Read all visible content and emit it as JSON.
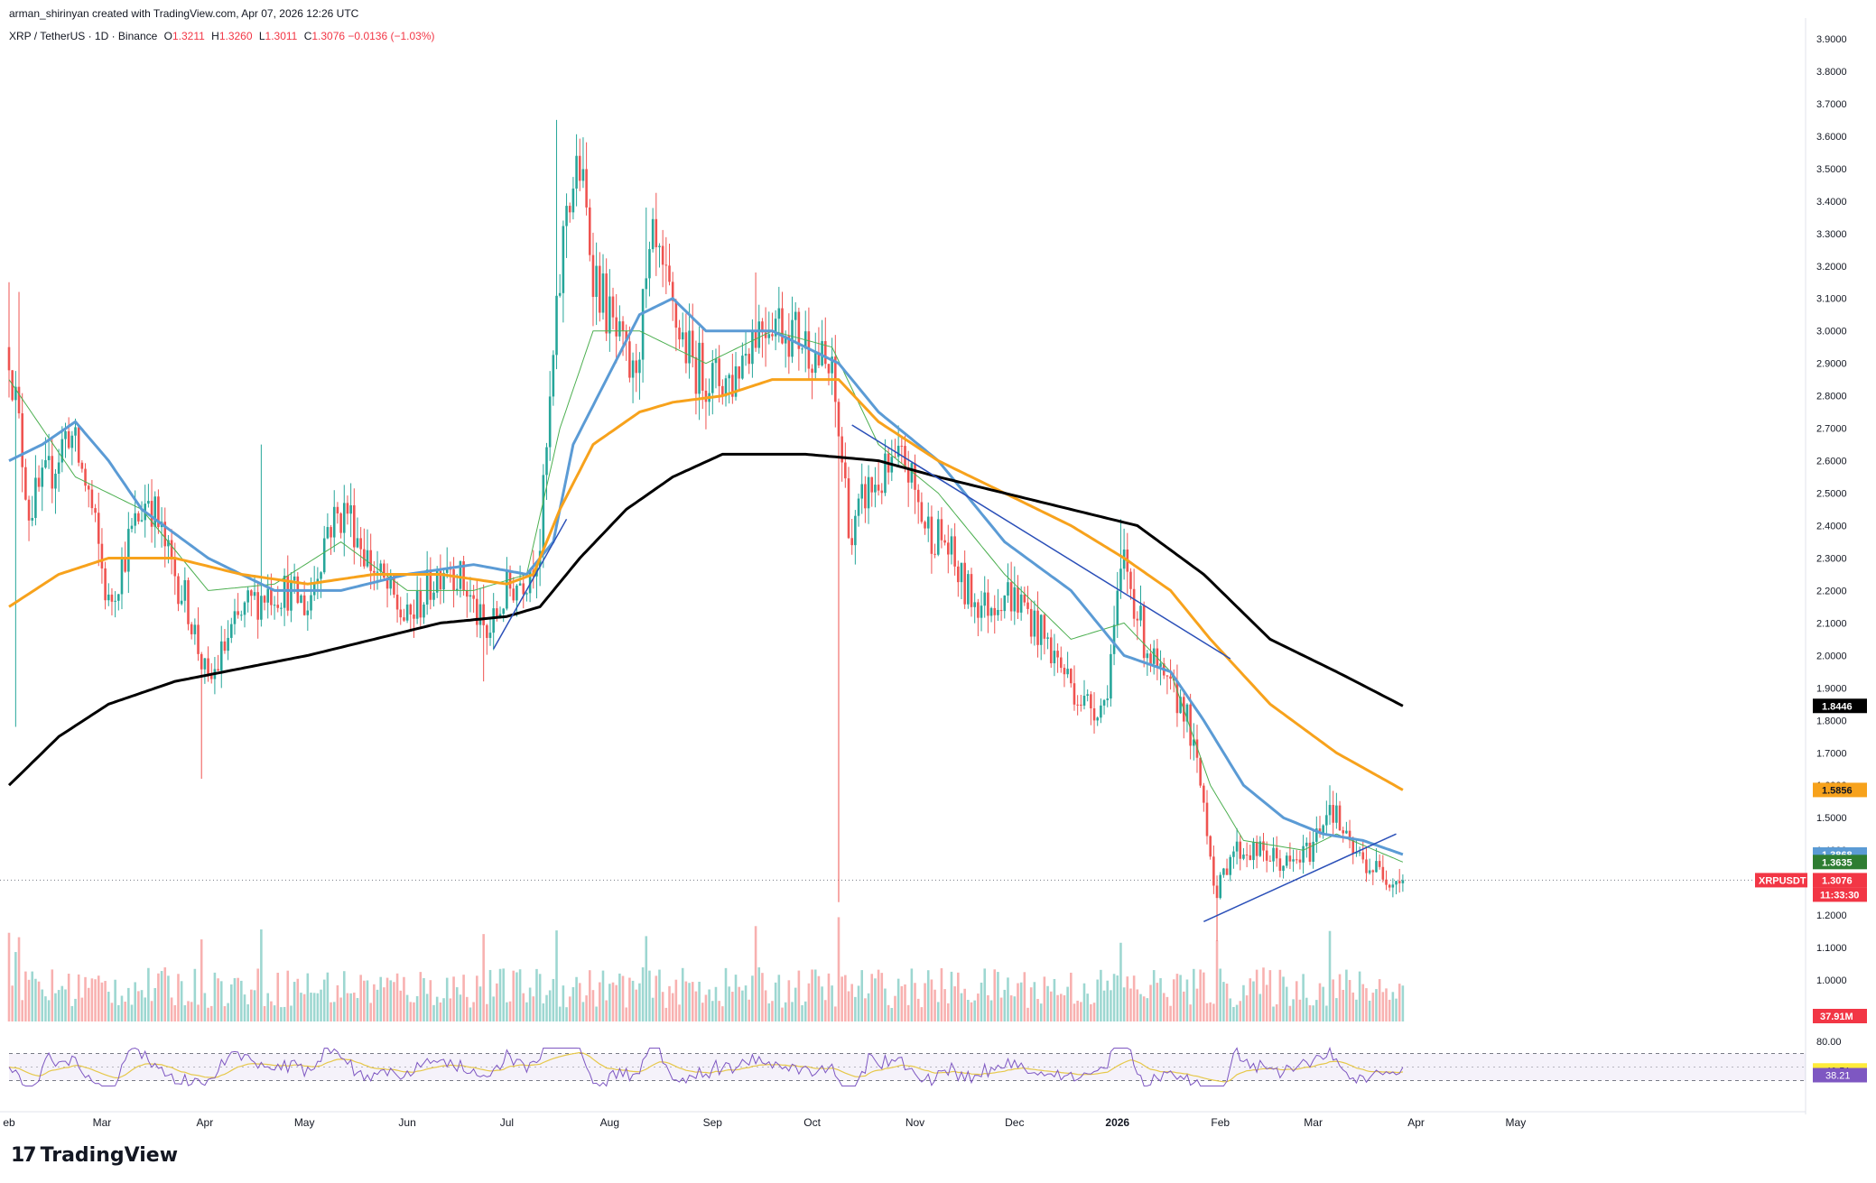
{
  "header": {
    "attribution": "arman_shirinyan created with TradingView.com, Apr 07, 2026 12:26 UTC"
  },
  "legend": {
    "symbol": "XRP / TetherUS · 1D · Binance",
    "o_label": "O",
    "o": "1.3211",
    "h_label": "H",
    "h": "1.3260",
    "l_label": "L",
    "l": "1.3011",
    "c_label": "C",
    "c": "1.3076",
    "change": "−0.0136 (−1.03%)"
  },
  "branding": {
    "logo_text": "TradingView"
  },
  "colors": {
    "up": "#26a69a",
    "down": "#ef5350",
    "ma_fast": "#4caf50",
    "ma_mid": "#5b9bd5",
    "ma_slow": "#f7a21c",
    "ma_long": "#000000",
    "trendline": "#2a4fb8",
    "rsi": "#7e57c2",
    "rsi_ma": "#e6c84a"
  },
  "price_tags": [
    {
      "label": "1.8446",
      "value": 1.8446,
      "bg": "#000000"
    },
    {
      "label": "1.5856",
      "value": 1.5856,
      "bg": "#f7a21c"
    },
    {
      "label": "1.3868",
      "value": 1.3868,
      "bg": "#5b9bd5"
    },
    {
      "label": "1.3635",
      "value": 1.3635,
      "bg": "#2e7d32"
    },
    {
      "label": "1.3076",
      "value": 1.3076,
      "bg": "#f23645"
    }
  ],
  "symbol_tag": {
    "label": "XRPUSDT",
    "countdown": "11:33:30"
  },
  "volume_tag": "37.91M",
  "rsi_tags": {
    "level": "80.00",
    "rsi_ma": "40.51",
    "rsi": "38.21"
  },
  "chart_data": {
    "type": "candlestick",
    "instrument": "XRP / TetherUS",
    "timeframe": "1D",
    "exchange": "Binance",
    "price_axis": {
      "range": [
        1.0,
        3.9
      ],
      "ticks": [
        "3.9000",
        "3.8000",
        "3.7000",
        "3.6000",
        "3.5000",
        "3.4000",
        "3.3000",
        "3.2000",
        "3.1000",
        "3.0000",
        "2.9000",
        "2.8000",
        "2.7000",
        "2.6000",
        "2.5000",
        "2.4000",
        "2.3000",
        "2.2000",
        "2.1000",
        "2.0000",
        "1.9000",
        "1.8000",
        "1.7000",
        "1.6000",
        "1.5000",
        "1.4000",
        "1.3000",
        "1.2000",
        "1.1000",
        "1.0000",
        "0.9000"
      ]
    },
    "time_axis": {
      "ticks": [
        "eb",
        "Mar",
        "Apr",
        "May",
        "Jun",
        "Jul",
        "Aug",
        "Sep",
        "Oct",
        "Nov",
        "Dec",
        "2026",
        "Feb",
        "Mar",
        "Apr",
        "May"
      ]
    },
    "price_path": [
      [
        0,
        2.95
      ],
      [
        6,
        2.45
      ],
      [
        12,
        2.55
      ],
      [
        18,
        2.7
      ],
      [
        24,
        2.5
      ],
      [
        30,
        2.15
      ],
      [
        36,
        2.35
      ],
      [
        42,
        2.5
      ],
      [
        48,
        2.3
      ],
      [
        54,
        2.15
      ],
      [
        60,
        1.9
      ],
      [
        66,
        2.05
      ],
      [
        72,
        2.15
      ],
      [
        78,
        2.2
      ],
      [
        84,
        2.2
      ],
      [
        90,
        2.15
      ],
      [
        96,
        2.4
      ],
      [
        102,
        2.45
      ],
      [
        108,
        2.3
      ],
      [
        114,
        2.2
      ],
      [
        120,
        2.1
      ],
      [
        126,
        2.2
      ],
      [
        132,
        2.3
      ],
      [
        138,
        2.2
      ],
      [
        144,
        2.05
      ],
      [
        150,
        2.2
      ],
      [
        156,
        2.25
      ],
      [
        160,
        2.35
      ],
      [
        164,
        2.9
      ],
      [
        168,
        3.4
      ],
      [
        172,
        3.5
      ],
      [
        176,
        3.2
      ],
      [
        182,
        3.0
      ],
      [
        188,
        2.85
      ],
      [
        194,
        3.25
      ],
      [
        200,
        3.05
      ],
      [
        206,
        2.9
      ],
      [
        212,
        2.85
      ],
      [
        218,
        2.85
      ],
      [
        224,
        3.0
      ],
      [
        230,
        3.05
      ],
      [
        236,
        3.0
      ],
      [
        242,
        2.95
      ],
      [
        248,
        2.85
      ],
      [
        254,
        2.35
      ],
      [
        258,
        2.5
      ],
      [
        264,
        2.55
      ],
      [
        270,
        2.6
      ],
      [
        276,
        2.4
      ],
      [
        282,
        2.35
      ],
      [
        288,
        2.2
      ],
      [
        294,
        2.15
      ],
      [
        300,
        2.2
      ],
      [
        306,
        2.15
      ],
      [
        312,
        2.05
      ],
      [
        318,
        1.95
      ],
      [
        324,
        1.85
      ],
      [
        330,
        1.85
      ],
      [
        336,
        2.3
      ],
      [
        342,
        2.05
      ],
      [
        348,
        1.9
      ],
      [
        354,
        1.85
      ],
      [
        360,
        1.55
      ],
      [
        364,
        1.25
      ],
      [
        368,
        1.4
      ],
      [
        374,
        1.4
      ],
      [
        380,
        1.38
      ],
      [
        386,
        1.35
      ],
      [
        392,
        1.4
      ],
      [
        398,
        1.55
      ],
      [
        404,
        1.4
      ],
      [
        410,
        1.35
      ],
      [
        416,
        1.32
      ],
      [
        420,
        1.3076
      ]
    ],
    "moving_averages": [
      {
        "name": "MA fast",
        "color": "#4caf50",
        "points": [
          [
            0,
            2.85
          ],
          [
            20,
            2.55
          ],
          [
            40,
            2.45
          ],
          [
            60,
            2.2
          ],
          [
            80,
            2.22
          ],
          [
            100,
            2.35
          ],
          [
            120,
            2.2
          ],
          [
            140,
            2.2
          ],
          [
            156,
            2.25
          ],
          [
            166,
            2.7
          ],
          [
            176,
            3.0
          ],
          [
            190,
            3.0
          ],
          [
            210,
            2.9
          ],
          [
            230,
            3.0
          ],
          [
            248,
            2.95
          ],
          [
            262,
            2.65
          ],
          [
            280,
            2.5
          ],
          [
            300,
            2.25
          ],
          [
            320,
            2.05
          ],
          [
            336,
            2.1
          ],
          [
            350,
            1.95
          ],
          [
            362,
            1.6
          ],
          [
            372,
            1.43
          ],
          [
            390,
            1.4
          ],
          [
            400,
            1.45
          ],
          [
            420,
            1.3635
          ]
        ]
      },
      {
        "name": "MA mid",
        "color": "#5b9bd5",
        "points": [
          [
            0,
            2.6
          ],
          [
            10,
            2.65
          ],
          [
            20,
            2.72
          ],
          [
            30,
            2.6
          ],
          [
            40,
            2.45
          ],
          [
            60,
            2.3
          ],
          [
            80,
            2.2
          ],
          [
            100,
            2.2
          ],
          [
            120,
            2.25
          ],
          [
            140,
            2.28
          ],
          [
            156,
            2.25
          ],
          [
            164,
            2.35
          ],
          [
            170,
            2.65
          ],
          [
            180,
            2.85
          ],
          [
            190,
            3.05
          ],
          [
            200,
            3.1
          ],
          [
            210,
            3.0
          ],
          [
            230,
            3.0
          ],
          [
            250,
            2.9
          ],
          [
            262,
            2.75
          ],
          [
            280,
            2.6
          ],
          [
            300,
            2.35
          ],
          [
            320,
            2.2
          ],
          [
            336,
            2.0
          ],
          [
            350,
            1.95
          ],
          [
            360,
            1.8
          ],
          [
            372,
            1.6
          ],
          [
            384,
            1.5
          ],
          [
            396,
            1.45
          ],
          [
            408,
            1.43
          ],
          [
            420,
            1.3868
          ]
        ]
      },
      {
        "name": "MA slow",
        "color": "#f7a21c",
        "points": [
          [
            0,
            2.15
          ],
          [
            15,
            2.25
          ],
          [
            30,
            2.3
          ],
          [
            50,
            2.3
          ],
          [
            70,
            2.25
          ],
          [
            90,
            2.22
          ],
          [
            110,
            2.25
          ],
          [
            130,
            2.25
          ],
          [
            150,
            2.22
          ],
          [
            158,
            2.25
          ],
          [
            166,
            2.45
          ],
          [
            176,
            2.65
          ],
          [
            190,
            2.75
          ],
          [
            200,
            2.78
          ],
          [
            215,
            2.8
          ],
          [
            230,
            2.85
          ],
          [
            250,
            2.85
          ],
          [
            262,
            2.72
          ],
          [
            280,
            2.6
          ],
          [
            300,
            2.5
          ],
          [
            320,
            2.4
          ],
          [
            336,
            2.3
          ],
          [
            350,
            2.2
          ],
          [
            362,
            2.05
          ],
          [
            380,
            1.85
          ],
          [
            400,
            1.7
          ],
          [
            420,
            1.5856
          ]
        ]
      },
      {
        "name": "MA long",
        "color": "#000000",
        "points": [
          [
            0,
            1.6
          ],
          [
            15,
            1.75
          ],
          [
            30,
            1.85
          ],
          [
            50,
            1.92
          ],
          [
            70,
            1.96
          ],
          [
            90,
            2.0
          ],
          [
            110,
            2.05
          ],
          [
            130,
            2.1
          ],
          [
            150,
            2.12
          ],
          [
            160,
            2.15
          ],
          [
            172,
            2.3
          ],
          [
            186,
            2.45
          ],
          [
            200,
            2.55
          ],
          [
            215,
            2.62
          ],
          [
            240,
            2.62
          ],
          [
            262,
            2.6
          ],
          [
            280,
            2.55
          ],
          [
            300,
            2.5
          ],
          [
            320,
            2.45
          ],
          [
            340,
            2.4
          ],
          [
            360,
            2.25
          ],
          [
            380,
            2.05
          ],
          [
            400,
            1.95
          ],
          [
            420,
            1.8446
          ]
        ]
      }
    ],
    "trendlines": [
      {
        "from": [
          146,
          2.02
        ],
        "to": [
          168,
          2.42
        ]
      },
      {
        "from": [
          254,
          2.71
        ],
        "to": [
          368,
          1.99
        ]
      },
      {
        "from": [
          360,
          1.18
        ],
        "to": [
          418,
          1.45
        ]
      }
    ],
    "volume": {
      "last": "37.91M"
    },
    "rsi": {
      "upper": 70,
      "lower": 30,
      "rsi_ma_last": 40.51,
      "rsi_last": 38.21,
      "level_label": "80.00"
    }
  }
}
